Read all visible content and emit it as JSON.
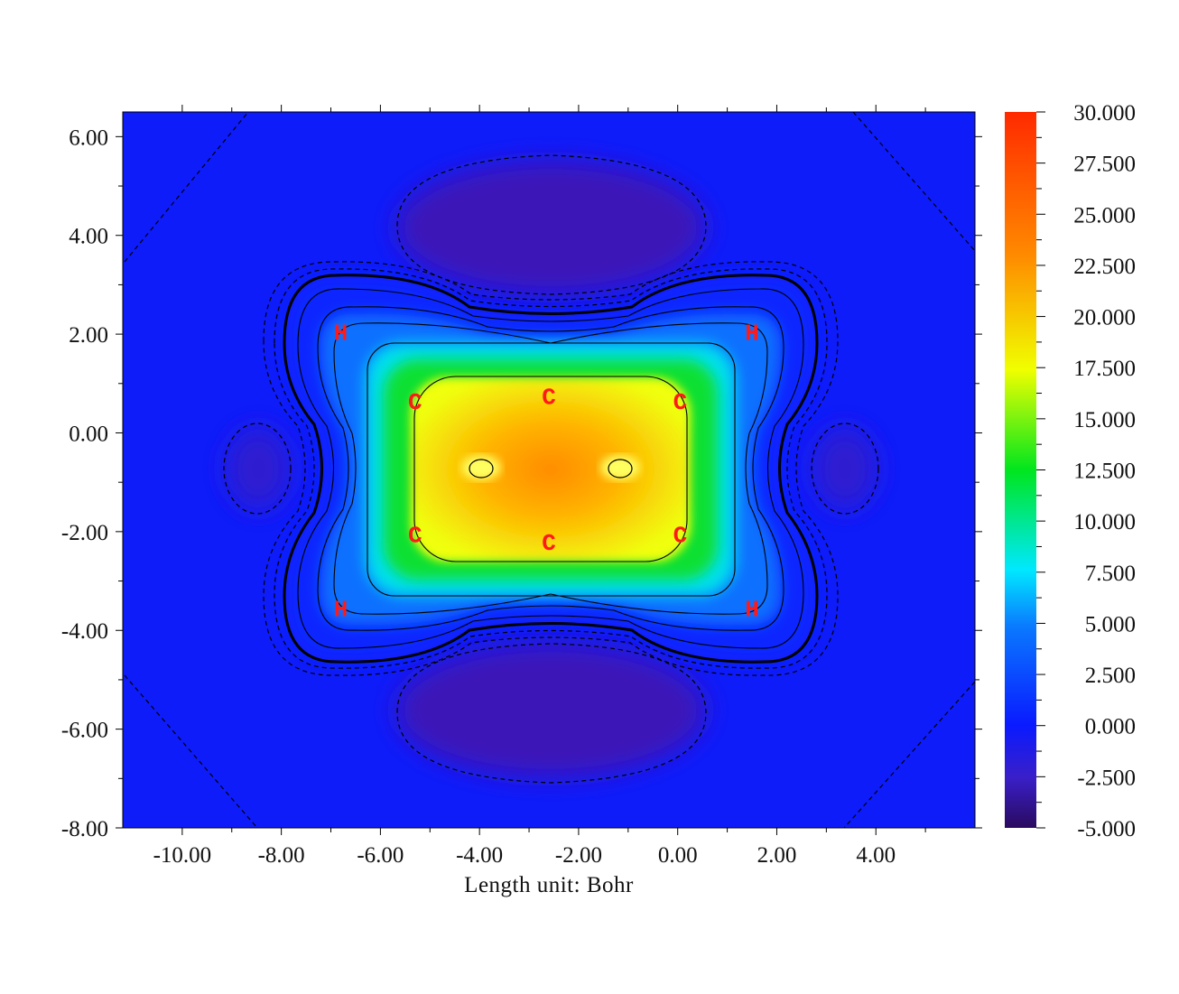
{
  "chart_data": {
    "type": "heatmap",
    "title": "",
    "xlabel": "Length unit: Bohr",
    "ylabel": "",
    "xlim": [
      -11.2,
      6.0
    ],
    "ylim": [
      -8.0,
      6.5
    ],
    "x_ticks": [
      -10,
      -8,
      -6,
      -4,
      -2,
      0,
      2,
      4
    ],
    "x_tick_labels": [
      "-10.00",
      "-8.00",
      "-6.00",
      "-4.00",
      "-2.00",
      "0.00",
      "2.00",
      "4.00"
    ],
    "y_ticks": [
      -8,
      -6,
      -4,
      -2,
      0,
      2,
      4,
      6
    ],
    "y_tick_labels": [
      "-8.00",
      "-6.00",
      "-4.00",
      "-2.00",
      "0.00",
      "2.00",
      "4.00",
      "6.00"
    ],
    "colorbar": {
      "min": -5.0,
      "max": 30.0,
      "ticks": [
        30,
        27.5,
        25,
        22.5,
        20,
        17.5,
        15,
        12.5,
        10,
        7.5,
        5,
        2.5,
        0,
        -2.5,
        -5
      ],
      "tick_labels": [
        "30.000",
        "27.500",
        "25.000",
        "22.500",
        "20.000",
        "17.500",
        "15.000",
        "12.500",
        "10.000",
        "7.500",
        "5.000",
        "2.500",
        "0.000",
        "-2.500",
        "-5.000"
      ],
      "colormap": [
        "#2a0a5e",
        "#3a1fc8",
        "#0a1aff",
        "#0a78ff",
        "#00e8ff",
        "#00e61e",
        "#f0ff00",
        "#ff8a00",
        "#ff2a00"
      ]
    },
    "atoms": [
      {
        "label": "H",
        "x": -6.8,
        "y": 2.05
      },
      {
        "label": "H",
        "x": 1.5,
        "y": 2.05
      },
      {
        "label": "H",
        "x": -6.8,
        "y": -3.55
      },
      {
        "label": "H",
        "x": 1.5,
        "y": -3.55
      },
      {
        "label": "C",
        "x": -5.3,
        "y": 0.65
      },
      {
        "label": "C",
        "x": -2.6,
        "y": 0.75
      },
      {
        "label": "C",
        "x": 0.05,
        "y": 0.65
      },
      {
        "label": "C",
        "x": -5.3,
        "y": -2.05
      },
      {
        "label": "C",
        "x": -2.6,
        "y": -2.2
      },
      {
        "label": "C",
        "x": 0.05,
        "y": -2.05
      }
    ],
    "contours": {
      "positive": "solid",
      "negative": "dashed",
      "local_minima": [
        {
          "x": -3.95,
          "y": -0.72
        },
        {
          "x": -1.15,
          "y": -0.72
        }
      ]
    }
  }
}
